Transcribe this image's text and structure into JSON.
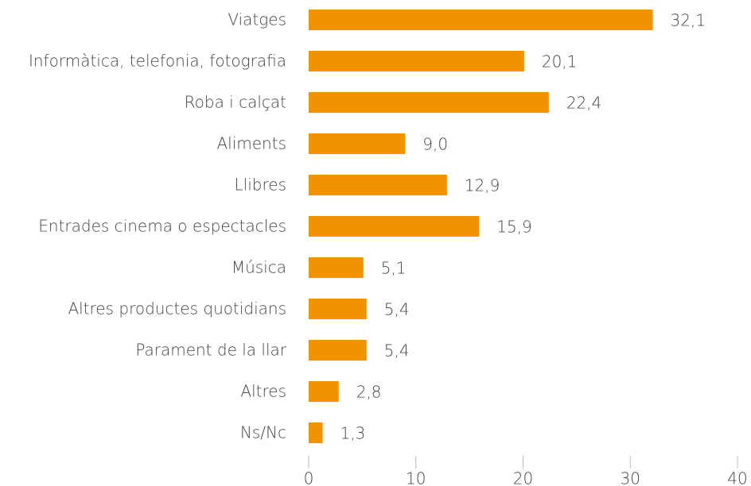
{
  "chart_data": {
    "type": "bar",
    "orientation": "horizontal",
    "categories": [
      "Viatges",
      "Informàtica, telefonia, fotografia",
      "Roba i calçat",
      "Aliments",
      "Llibres",
      "Entrades cinema o espectacles",
      "Música",
      "Altres productes quotidians",
      "Parament de la llar",
      "Altres",
      "Ns/Nc"
    ],
    "values": [
      32.1,
      20.1,
      22.4,
      9.0,
      12.9,
      15.9,
      5.1,
      5.4,
      5.4,
      2.8,
      1.3
    ],
    "value_labels": [
      "32,1",
      "20,1",
      "22,4",
      "9,0",
      "12,9",
      "15,9",
      "5,1",
      "5,4",
      "5,4",
      "2,8",
      "1,3"
    ],
    "color": "#f39200",
    "xlim": [
      0,
      40
    ],
    "xticks": [
      0,
      10,
      20,
      30,
      40
    ],
    "grid": false
  }
}
